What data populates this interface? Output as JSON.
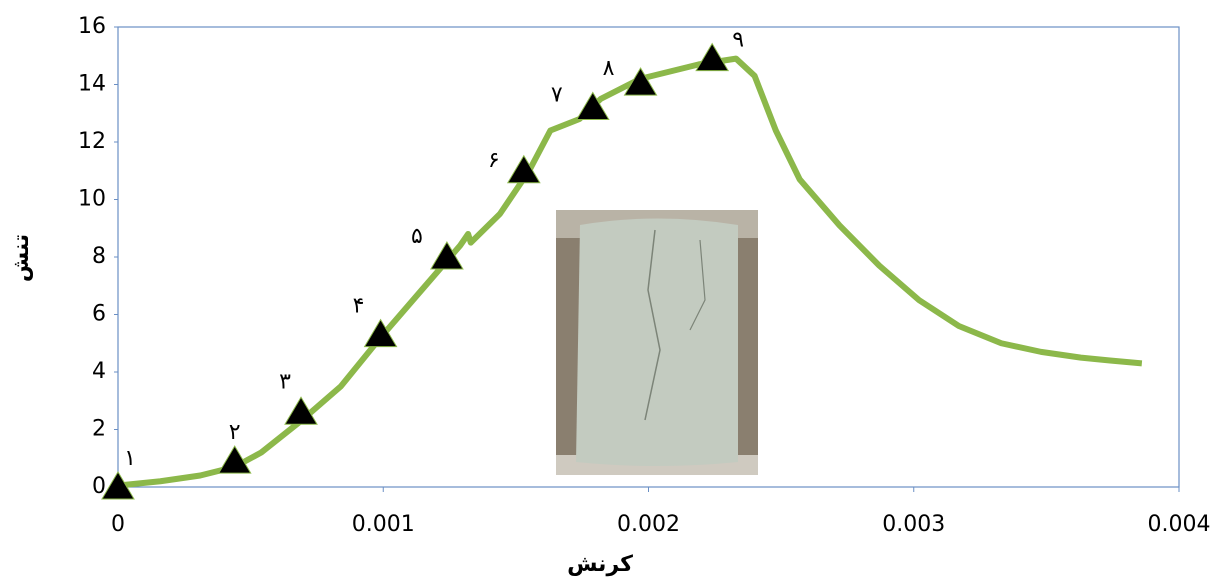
{
  "chart_data": {
    "type": "line",
    "x_label": "کرنش",
    "y_label": "تنش",
    "xlim": [
      0,
      0.004
    ],
    "xticks": [
      0,
      0.001,
      0.002,
      0.003,
      0.004
    ],
    "ylim": [
      0,
      16
    ],
    "yticks": [
      0,
      2,
      4,
      6,
      8,
      10,
      12,
      14,
      16
    ],
    "series": [
      {
        "color": "#8cb84a",
        "marker": "none",
        "x": [
          0,
          0.00016,
          0.00031,
          0.00044,
          0.00054,
          0.00069,
          0.00084,
          0.00099,
          0.00114,
          0.00129,
          0.00132,
          0.00133,
          0.00144,
          0.00155,
          0.00163,
          0.00174,
          0.00182,
          0.00197,
          0.00219,
          0.00233,
          0.0024,
          0.00248,
          0.00257,
          0.00272,
          0.00287,
          0.00302,
          0.00317,
          0.00333,
          0.00348,
          0.00363,
          0.00374,
          0.00386
        ],
        "values": [
          0.05,
          0.2,
          0.4,
          0.7,
          1.2,
          2.3,
          3.5,
          5.2,
          6.8,
          8.4,
          8.8,
          8.5,
          9.5,
          11.0,
          12.4,
          12.8,
          13.5,
          14.2,
          14.7,
          14.9,
          14.3,
          12.4,
          10.7,
          9.1,
          7.7,
          6.5,
          5.6,
          5.0,
          4.7,
          4.5,
          4.4,
          4.3
        ]
      },
      {
        "color": "#000000",
        "marker": "triangle",
        "x": [
          0,
          0.00044,
          0.00069,
          0.00099,
          0.00124,
          0.00153,
          0.00179,
          0.00197,
          0.00224
        ],
        "values": [
          0,
          0.9,
          2.6,
          5.3,
          8.0,
          11.0,
          13.2,
          14.05,
          14.9
        ],
        "point_labels": [
          "۱",
          "۲",
          "۳",
          "۴",
          "۵",
          "۶",
          "۷",
          "۸",
          "۹"
        ]
      }
    ]
  }
}
